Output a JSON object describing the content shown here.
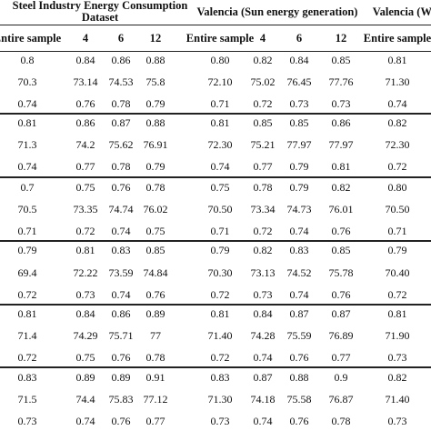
{
  "header": {
    "group1_line1": "Steel Industry Energy Consumption",
    "group1_line2": "Dataset",
    "group2": "Valencia (Sun energy generation)",
    "group3": "Valencia (Wi"
  },
  "columns": [
    "Entire sample",
    "4",
    "6",
    "12",
    "Entire sample",
    "4",
    "6",
    "12",
    "Entire sample"
  ],
  "blocks": [
    [
      [
        "0.8",
        "0.84",
        "0.86",
        "0.88",
        "0.80",
        "0.82",
        "0.84",
        "0.85",
        "0.81"
      ],
      [
        "70.3",
        "73.14",
        "74.53",
        "75.8",
        "72.10",
        "75.02",
        "76.45",
        "77.76",
        "71.30"
      ],
      [
        "0.74",
        "0.76",
        "0.78",
        "0.79",
        "0.71",
        "0.72",
        "0.73",
        "0.73",
        "0.74"
      ]
    ],
    [
      [
        "0.81",
        "0.86",
        "0.87",
        "0.88",
        "0.81",
        "0.85",
        "0.85",
        "0.86",
        "0.82"
      ],
      [
        "71.3",
        "74.2",
        "75.62",
        "76.91",
        "72.30",
        "75.21",
        "77.97",
        "77.97",
        "72.30"
      ],
      [
        "0.74",
        "0.77",
        "0.78",
        "0.79",
        "0.74",
        "0.77",
        "0.79",
        "0.81",
        "0.72"
      ]
    ],
    [
      [
        "0.7",
        "0.75",
        "0.76",
        "0.78",
        "0.75",
        "0.78",
        "0.79",
        "0.82",
        "0.80"
      ],
      [
        "70.5",
        "73.35",
        "74.74",
        "76.02",
        "70.50",
        "73.34",
        "74.73",
        "76.01",
        "70.50"
      ],
      [
        "0.71",
        "0.72",
        "0.74",
        "0.75",
        "0.71",
        "0.72",
        "0.74",
        "0.76",
        "0.71"
      ]
    ],
    [
      [
        "0.79",
        "0.81",
        "0.83",
        "0.85",
        "0.79",
        "0.82",
        "0.83",
        "0.85",
        "0.79"
      ],
      [
        "69.4",
        "72.22",
        "73.59",
        "74.84",
        "70.30",
        "73.13",
        "74.52",
        "75.78",
        "70.40"
      ],
      [
        "0.72",
        "0.73",
        "0.74",
        "0.76",
        "0.72",
        "0.73",
        "0.74",
        "0.76",
        "0.72"
      ]
    ],
    [
      [
        "0.81",
        "0.84",
        "0.86",
        "0.89",
        "0.81",
        "0.84",
        "0.87",
        "0.87",
        "0.81"
      ],
      [
        "71.4",
        "74.29",
        "75.71",
        "77",
        "71.40",
        "74.28",
        "75.59",
        "76.89",
        "71.90"
      ],
      [
        "0.72",
        "0.75",
        "0.76",
        "0.78",
        "0.72",
        "0.74",
        "0.76",
        "0.77",
        "0.73"
      ]
    ],
    [
      [
        "0.83",
        "0.89",
        "0.89",
        "0.91",
        "0.83",
        "0.87",
        "0.88",
        "0.9",
        "0.82"
      ],
      [
        "71.5",
        "74.4",
        "75.83",
        "77.12",
        "71.30",
        "74.18",
        "75.58",
        "76.87",
        "71.40"
      ],
      [
        "0.73",
        "0.74",
        "0.76",
        "0.77",
        "0.73",
        "0.74",
        "0.76",
        "0.78",
        "0.73"
      ]
    ]
  ]
}
